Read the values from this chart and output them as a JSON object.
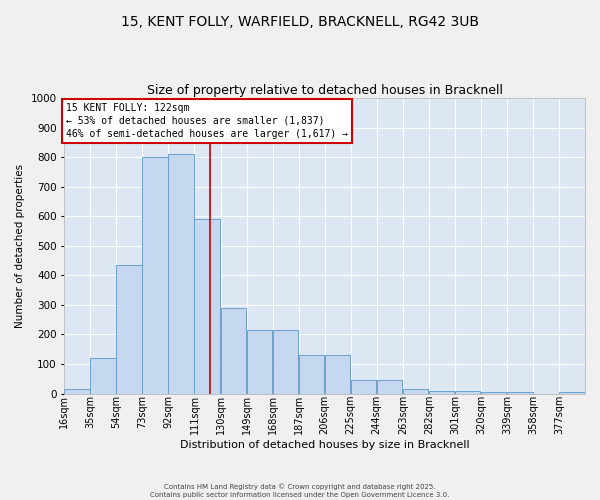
{
  "title_line1": "15, KENT FOLLY, WARFIELD, BRACKNELL, RG42 3UB",
  "title_line2": "Size of property relative to detached houses in Bracknell",
  "xlabel": "Distribution of detached houses by size in Bracknell",
  "ylabel": "Number of detached properties",
  "bar_color": "#c5d8ef",
  "bar_edge_color": "#6ca0cc",
  "background_color": "#dce7f3",
  "grid_color": "#ffffff",
  "vline_x": 122,
  "vline_color": "#cc0000",
  "annotation_text": "15 KENT FOLLY: 122sqm\n← 53% of detached houses are smaller (1,837)\n46% of semi-detached houses are larger (1,617) →",
  "annotation_box_color": "#ffffff",
  "annotation_box_edge": "#cc0000",
  "bins": [
    16,
    35,
    54,
    73,
    92,
    111,
    130,
    149,
    168,
    187,
    206,
    225,
    244,
    263,
    282,
    301,
    320,
    339,
    358,
    377,
    396
  ],
  "bin_width": 19,
  "bar_heights": [
    15,
    120,
    435,
    800,
    810,
    590,
    290,
    215,
    215,
    130,
    130,
    45,
    45,
    15,
    10,
    10,
    5,
    5,
    0,
    5
  ],
  "ylim": [
    0,
    1000
  ],
  "yticks": [
    0,
    100,
    200,
    300,
    400,
    500,
    600,
    700,
    800,
    900,
    1000
  ],
  "footer_line1": "Contains HM Land Registry data © Crown copyright and database right 2025.",
  "footer_line2": "Contains public sector information licensed under the Open Government Licence 3.0.",
  "title_fontsize": 10,
  "subtitle_fontsize": 9,
  "fig_bg": "#f0f0f0"
}
